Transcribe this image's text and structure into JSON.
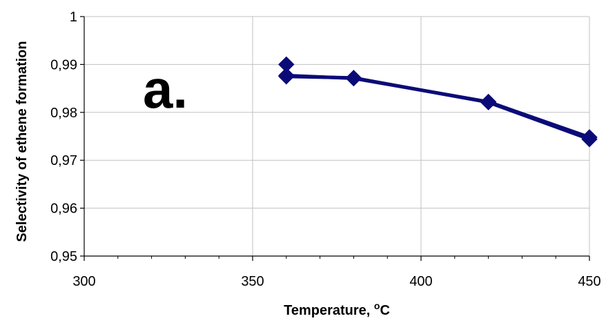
{
  "chart_data": {
    "type": "line",
    "panel_label": "a.",
    "xlabel": "Temperature, ",
    "xlabel_superscript": "o",
    "xlabel_unit": "C",
    "ylabel": "Selectivity of ethene formation",
    "xlim": [
      300,
      450
    ],
    "ylim": [
      0.95,
      1.0
    ],
    "x_ticks": [
      "300",
      "350",
      "400",
      "450"
    ],
    "y_ticks": [
      "0,95",
      "0,96",
      "0,97",
      "0,98",
      "0,99",
      "1"
    ],
    "grid": true,
    "line_color": "#0b0b78",
    "grid_color": "#c0c0c0",
    "series": [
      {
        "x": [
          360,
          360,
          380,
          420,
          450
        ],
        "y": [
          0.99,
          0.9875,
          0.9872,
          0.9821,
          0.9744
        ]
      },
      {
        "x": [
          360,
          380,
          420,
          450
        ],
        "y": [
          0.9877,
          0.9871,
          0.9822,
          0.9748
        ]
      }
    ]
  }
}
